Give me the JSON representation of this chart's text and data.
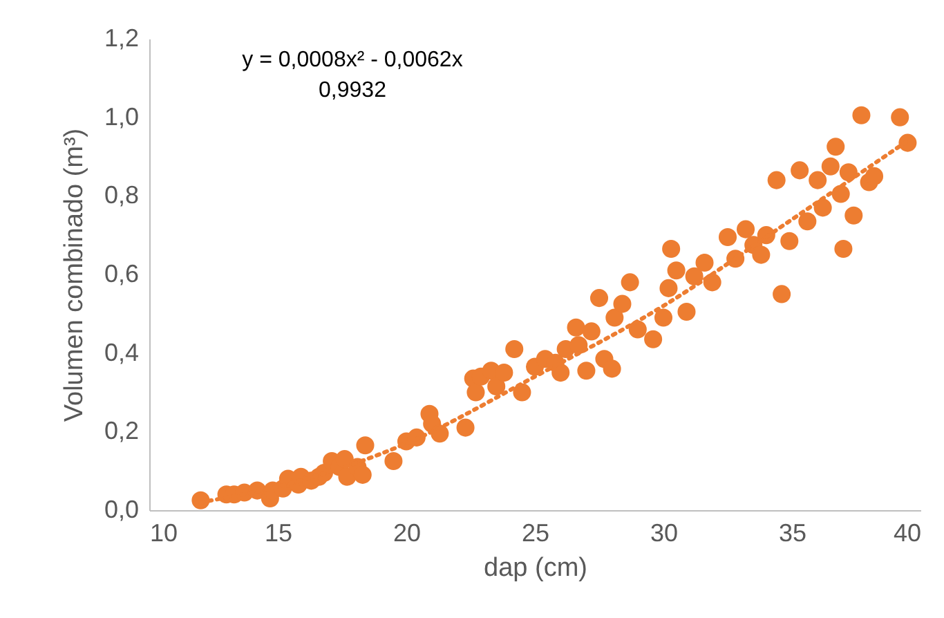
{
  "chart_data": {
    "type": "scatter",
    "xlabel": "dap (cm)",
    "ylabel": "Volumen combinado  (m³)",
    "annotations": [
      "y = 0,0008x² - 0,0062x",
      "0,9932"
    ],
    "xlim": [
      10,
      40
    ],
    "xticks": [
      10,
      15,
      20,
      25,
      30,
      35,
      40
    ],
    "ylim": [
      0,
      1.2
    ],
    "yticks": [
      {
        "value": 0,
        "label": "0,0"
      },
      {
        "value": 0.2,
        "label": "0,2"
      },
      {
        "value": 0.4,
        "label": "0,4"
      },
      {
        "value": 0.6,
        "label": "0,6"
      },
      {
        "value": 0.8,
        "label": "0,8"
      },
      {
        "value": 1.0,
        "label": "1,0"
      },
      {
        "value": 1.2,
        "label": "1,2"
      }
    ],
    "grid": false,
    "marker": "circle",
    "series": [
      {
        "color": "#ed7d31",
        "x": [
          12.0,
          13.0,
          13.3,
          13.7,
          14.2,
          14.7,
          14.8,
          15.2,
          15.4,
          15.8,
          15.9,
          16.3,
          16.6,
          16.8,
          17.1,
          17.4,
          17.6,
          17.7,
          18.1,
          18.3,
          18.4,
          19.5,
          20.0,
          20.4,
          20.9,
          21.0,
          21.3,
          22.3,
          22.6,
          22.7,
          22.9,
          23.3,
          23.5,
          23.8,
          24.2,
          24.5,
          25.0,
          25.4,
          25.8,
          26.0,
          26.2,
          26.6,
          26.7,
          27.0,
          27.2,
          27.5,
          27.7,
          28.0,
          28.1,
          28.4,
          28.7,
          29.0,
          29.6,
          30.0,
          30.2,
          30.3,
          30.5,
          30.9,
          31.2,
          31.6,
          31.9,
          32.5,
          32.8,
          33.2,
          33.5,
          33.8,
          34.0,
          34.4,
          34.6,
          34.9,
          35.3,
          35.6,
          36.0,
          36.2,
          36.5,
          36.7,
          36.9,
          37.0,
          37.2,
          37.4,
          37.7,
          38.0,
          38.2,
          39.2,
          39.5
        ],
        "values": [
          0.025,
          0.04,
          0.04,
          0.045,
          0.05,
          0.03,
          0.05,
          0.055,
          0.08,
          0.065,
          0.085,
          0.075,
          0.085,
          0.095,
          0.125,
          0.11,
          0.13,
          0.085,
          0.11,
          0.09,
          0.165,
          0.125,
          0.175,
          0.185,
          0.245,
          0.22,
          0.195,
          0.21,
          0.335,
          0.3,
          0.34,
          0.355,
          0.315,
          0.35,
          0.41,
          0.3,
          0.365,
          0.385,
          0.375,
          0.35,
          0.41,
          0.465,
          0.42,
          0.355,
          0.455,
          0.54,
          0.385,
          0.36,
          0.49,
          0.525,
          0.58,
          0.46,
          0.435,
          0.49,
          0.565,
          0.665,
          0.61,
          0.505,
          0.595,
          0.63,
          0.58,
          0.695,
          0.64,
          0.715,
          0.675,
          0.65,
          0.7,
          0.84,
          0.55,
          0.685,
          0.865,
          0.735,
          0.84,
          0.77,
          0.875,
          0.925,
          0.805,
          0.665,
          0.86,
          0.75,
          1.005,
          0.835,
          0.85,
          1.0,
          0.935
        ]
      },
      {
        "type": "line",
        "line_style": "dotted",
        "marker": "none",
        "color": "#ed7d31",
        "x": [
          12,
          15,
          20,
          25,
          30,
          35,
          39.5
        ],
        "values": [
          0.02,
          0.06,
          0.17,
          0.34,
          0.52,
          0.74,
          0.94
        ]
      }
    ]
  }
}
